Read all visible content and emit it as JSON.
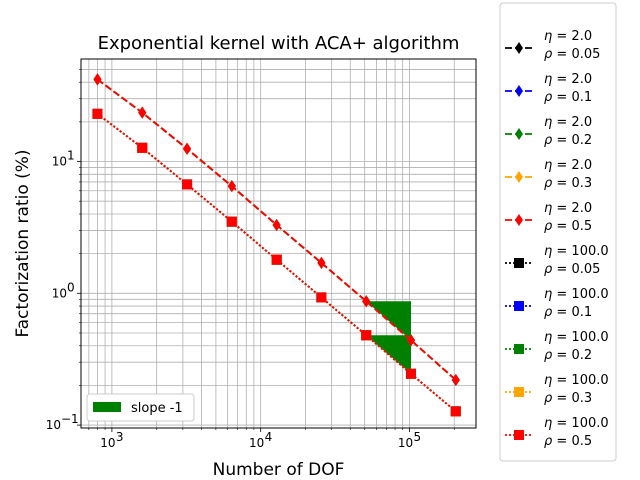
{
  "chart_data": {
    "type": "line",
    "title": "Exponential kernel with ACA+ algorithm",
    "xlabel": "Number of DOF",
    "ylabel": "Factorization ratio (%)",
    "xscale": "log",
    "yscale": "log",
    "xlim": [
      620,
      280000
    ],
    "ylim": [
      0.095,
      60
    ],
    "grid": true,
    "x_ticks": [
      {
        "value": 1000,
        "base": "10",
        "exp": "3"
      },
      {
        "value": 10000,
        "base": "10",
        "exp": "4"
      },
      {
        "value": 100000,
        "base": "10",
        "exp": "5"
      }
    ],
    "y_ticks": [
      {
        "value": 0.1,
        "base": "10",
        "exp": "−1"
      },
      {
        "value": 1,
        "base": "10",
        "exp": "0"
      },
      {
        "value": 10,
        "base": "10",
        "exp": "1"
      }
    ],
    "x": [
      800,
      1600,
      3200,
      6400,
      12800,
      25600,
      51200,
      102400,
      204800
    ],
    "series": [
      {
        "eta": "2.0",
        "rho": "0.05",
        "color": "#000000",
        "marker": "diamond",
        "dash": "dashed",
        "values": [
          42,
          23.5,
          12.5,
          6.5,
          3.3,
          1.7,
          0.87,
          0.44,
          0.22
        ]
      },
      {
        "eta": "2.0",
        "rho": "0.1",
        "color": "#0000ff",
        "marker": "diamond",
        "dash": "dashed",
        "values": [
          42,
          23.5,
          12.5,
          6.5,
          3.3,
          1.7,
          0.87,
          0.44,
          0.22
        ]
      },
      {
        "eta": "2.0",
        "rho": "0.2",
        "color": "#008000",
        "marker": "diamond",
        "dash": "dashed",
        "values": [
          42,
          23.5,
          12.5,
          6.5,
          3.3,
          1.7,
          0.87,
          0.44,
          0.22
        ]
      },
      {
        "eta": "2.0",
        "rho": "0.3",
        "color": "#ffa500",
        "marker": "diamond",
        "dash": "dashed",
        "values": [
          42,
          23.5,
          12.5,
          6.5,
          3.3,
          1.7,
          0.87,
          0.44,
          0.22
        ]
      },
      {
        "eta": "2.0",
        "rho": "0.5",
        "color": "#ff0000",
        "marker": "diamond",
        "dash": "dashed",
        "values": [
          42,
          23.5,
          12.5,
          6.5,
          3.3,
          1.7,
          0.87,
          0.44,
          0.22
        ]
      },
      {
        "eta": "100.0",
        "rho": "0.05",
        "color": "#000000",
        "marker": "square",
        "dash": "dotted",
        "values": [
          23,
          12.7,
          6.7,
          3.5,
          1.8,
          0.93,
          0.48,
          0.245,
          0.127
        ]
      },
      {
        "eta": "100.0",
        "rho": "0.1",
        "color": "#0000ff",
        "marker": "square",
        "dash": "dotted",
        "values": [
          23,
          12.7,
          6.7,
          3.5,
          1.8,
          0.93,
          0.48,
          0.245,
          0.127
        ]
      },
      {
        "eta": "100.0",
        "rho": "0.2",
        "color": "#008000",
        "marker": "square",
        "dash": "dotted",
        "values": [
          23,
          12.7,
          6.7,
          3.5,
          1.8,
          0.93,
          0.48,
          0.245,
          0.127
        ]
      },
      {
        "eta": "100.0",
        "rho": "0.3",
        "color": "#ffa500",
        "marker": "square",
        "dash": "dotted",
        "values": [
          23,
          12.7,
          6.7,
          3.5,
          1.8,
          0.93,
          0.48,
          0.245,
          0.127
        ]
      },
      {
        "eta": "100.0",
        "rho": "0.5",
        "color": "#ff0000",
        "marker": "square",
        "dash": "dotted",
        "values": [
          23,
          12.7,
          6.7,
          3.5,
          1.8,
          0.93,
          0.48,
          0.245,
          0.127
        ]
      }
    ],
    "slope_triangles": [
      {
        "x_start": 51200,
        "x_end": 102400,
        "y_start": 0.87,
        "y_end": 0.44
      },
      {
        "x_start": 51200,
        "x_end": 102400,
        "y_start": 0.48,
        "y_end": 0.245
      }
    ],
    "slope_color": "#008000",
    "inner_legend": {
      "label": "slope -1",
      "color": "#008000",
      "location": "lower-left"
    },
    "legend_location": "right"
  }
}
